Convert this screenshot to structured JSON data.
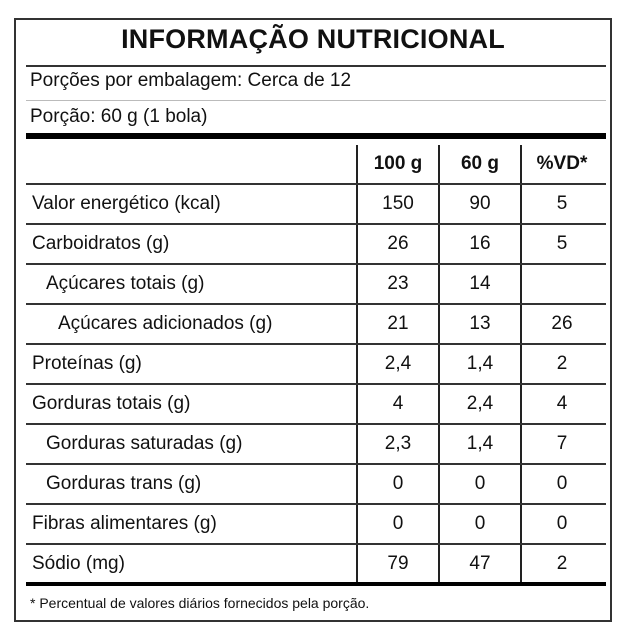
{
  "title": "INFORMAÇÃO NUTRICIONAL",
  "servings_per_package": "Porções por embalagem: Cerca de 12",
  "serving_size": "Porção: 60 g (1 bola)",
  "columns": [
    "100 g",
    "60 g",
    "%VD*"
  ],
  "rows": [
    {
      "label": "Valor energético (kcal)",
      "indent": 0,
      "v100": "150",
      "v60": "90",
      "vd": "5"
    },
    {
      "label": "Carboidratos (g)",
      "indent": 0,
      "v100": "26",
      "v60": "16",
      "vd": "5"
    },
    {
      "label": "Açúcares totais (g)",
      "indent": 1,
      "v100": "23",
      "v60": "14",
      "vd": ""
    },
    {
      "label": "Açúcares adicionados (g)",
      "indent": 2,
      "v100": "21",
      "v60": "13",
      "vd": "26"
    },
    {
      "label": "Proteínas (g)",
      "indent": 0,
      "v100": "2,4",
      "v60": "1,4",
      "vd": "2"
    },
    {
      "label": "Gorduras totais (g)",
      "indent": 0,
      "v100": "4",
      "v60": "2,4",
      "vd": "4"
    },
    {
      "label": "Gorduras saturadas (g)",
      "indent": 1,
      "v100": "2,3",
      "v60": "1,4",
      "vd": "7"
    },
    {
      "label": "Gorduras trans (g)",
      "indent": 1,
      "v100": "0",
      "v60": "0",
      "vd": "0"
    },
    {
      "label": "Fibras alimentares (g)",
      "indent": 0,
      "v100": "0",
      "v60": "0",
      "vd": "0"
    },
    {
      "label": "Sódio (mg)",
      "indent": 0,
      "v100": "79",
      "v60": "47",
      "vd": "2"
    }
  ],
  "footnote": "* Percentual de valores diários fornecidos pela porção."
}
